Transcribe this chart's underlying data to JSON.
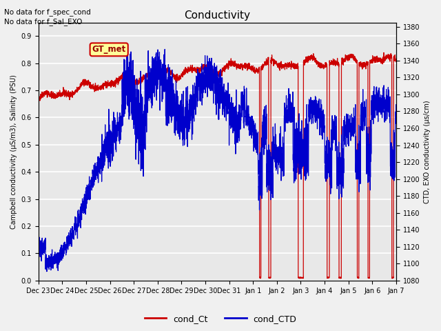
{
  "title": "Conductivity",
  "ylabel_left": "Campbell conductivity (μS/m3), Salinity (PSU)",
  "ylabel_right": "CTD, EXO conductivity (μs/cm)",
  "ylim_left": [
    0.0,
    0.95
  ],
  "ylim_right": [
    1080,
    1385
  ],
  "text_no_data": [
    "No data for f_spec_cond",
    "No data for f_Sal_EXO"
  ],
  "gt_met_label": "GT_met",
  "legend_entries": [
    "cond_Ct",
    "cond_CTD"
  ],
  "legend_colors": [
    "#cc0000",
    "#0000cc"
  ],
  "background_color": "#f0f0f0",
  "plot_bg_color": "#e8e8e8",
  "grid_color": "#ffffff",
  "color_red": "#cc0000",
  "color_blue": "#0000cc",
  "xtick_labels": [
    "Dec 23",
    "Dec 24",
    "Dec 25",
    "Dec 26",
    "Dec 27",
    "Dec 28",
    "Dec 29",
    "Dec 30",
    "Dec 31",
    "Jan 1",
    "Jan 2",
    "Jan 3",
    "Jan 4",
    "Jan 5",
    "Jan 6",
    "Jan 7"
  ],
  "yticks_left": [
    0.0,
    0.1,
    0.2,
    0.3,
    0.4,
    0.5,
    0.6,
    0.7,
    0.8,
    0.9
  ],
  "yticks_right": [
    1080,
    1100,
    1120,
    1140,
    1160,
    1180,
    1200,
    1220,
    1240,
    1260,
    1280,
    1300,
    1320,
    1340,
    1360,
    1380
  ],
  "xlim": [
    0,
    15
  ],
  "seed": 42,
  "red_drop_centers": [
    9.3,
    9.7,
    11.0,
    12.15,
    12.65,
    13.4,
    13.85,
    14.85
  ],
  "red_drop_widths": [
    0.06,
    0.09,
    0.22,
    0.1,
    0.1,
    0.07,
    0.07,
    0.07
  ]
}
